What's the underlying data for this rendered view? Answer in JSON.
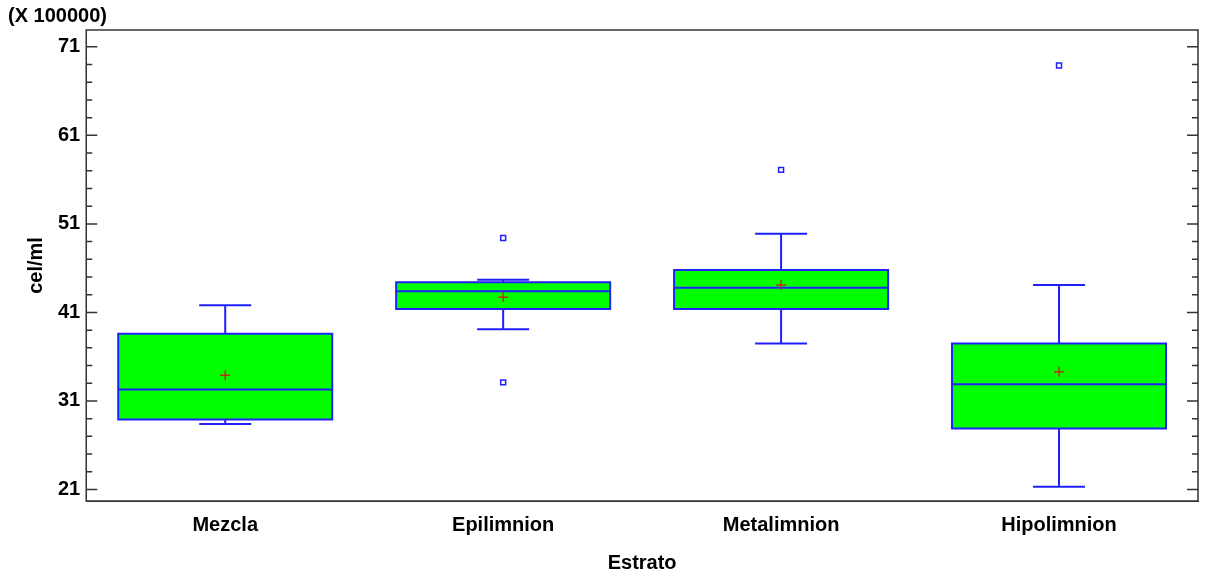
{
  "chart_data": {
    "type": "box",
    "xlabel": "Estrato",
    "ylabel": "cel/ml",
    "annotations": [
      "(X 100000)"
    ],
    "categories": [
      "Mezcla",
      "Epilimnion",
      "Metalimnion",
      "Hipolimnion"
    ],
    "color": "#00ff00",
    "boxes": [
      {
        "low": 28.4,
        "q1": 28.9,
        "median": 32.3,
        "q3": 38.6,
        "high": 41.8,
        "mean": 33.9
      },
      {
        "low": 39.1,
        "q1": 41.4,
        "median": 43.4,
        "q3": 44.4,
        "high": 44.7,
        "mean": 42.7,
        "outliers": [
          49.4,
          33.1
        ]
      },
      {
        "low": 37.5,
        "q1": 41.4,
        "median": 43.8,
        "q3": 45.8,
        "high": 49.9,
        "mean": 44.1,
        "outliers": [
          57.1
        ]
      },
      {
        "low": 21.3,
        "q1": 27.9,
        "median": 32.9,
        "q3": 37.5,
        "high": 44.1,
        "mean": 34.3,
        "outliers": [
          68.9
        ]
      }
    ],
    "ylim": [
      19.7,
      72.9
    ],
    "yticks": [
      21,
      {
        "value": 23,
        "label": null
      },
      {
        "value": 25,
        "label": null
      },
      {
        "value": 27,
        "label": null
      },
      {
        "value": 29,
        "label": null
      },
      31,
      {
        "value": 33,
        "label": null
      },
      {
        "value": 35,
        "label": null
      },
      {
        "value": 37,
        "label": null
      },
      {
        "value": 39,
        "label": null
      },
      41,
      {
        "value": 43,
        "label": null
      },
      {
        "value": 45,
        "label": null
      },
      {
        "value": 47,
        "label": null
      },
      {
        "value": 49,
        "label": null
      },
      51,
      {
        "value": 53,
        "label": null
      },
      {
        "value": 55,
        "label": null
      },
      {
        "value": 57,
        "label": null
      },
      {
        "value": 59,
        "label": null
      },
      61,
      {
        "value": 63,
        "label": null
      },
      {
        "value": 65,
        "label": null
      },
      {
        "value": 67,
        "label": null
      },
      {
        "value": 69,
        "label": null
      },
      71
    ],
    "grid": false,
    "legend": false
  }
}
